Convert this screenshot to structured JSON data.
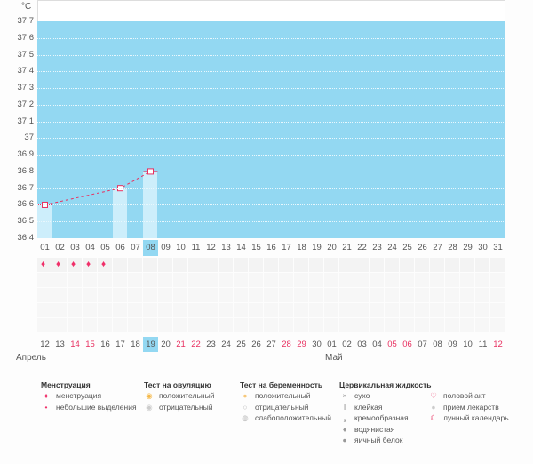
{
  "unit": "°C",
  "y_ticks": [
    "37.7",
    "37.6",
    "37.5",
    "37.4",
    "37.3",
    "37.2",
    "37.1",
    "37",
    "36.9",
    "36.8",
    "36.7",
    "36.6",
    "36.5",
    "36.4"
  ],
  "cycle_days": [
    "01",
    "02",
    "03",
    "04",
    "05",
    "06",
    "07",
    "08",
    "09",
    "10",
    "11",
    "12",
    "13",
    "14",
    "15",
    "16",
    "17",
    "18",
    "19",
    "20",
    "21",
    "22",
    "23",
    "24",
    "25",
    "26",
    "27",
    "28",
    "29",
    "30",
    "31"
  ],
  "current_cycle_day": "08",
  "temperatures": [
    {
      "day": "01",
      "value": 36.6
    },
    {
      "day": "06",
      "value": 36.7
    },
    {
      "day": "08",
      "value": 36.8
    }
  ],
  "menstruation_days": [
    "01",
    "02",
    "03",
    "04",
    "05"
  ],
  "dates": [
    "12",
    "13",
    "14",
    "15",
    "16",
    "17",
    "18",
    "19",
    "20",
    "21",
    "22",
    "23",
    "24",
    "25",
    "26",
    "27",
    "28",
    "29",
    "30",
    "01",
    "02",
    "03",
    "04",
    "05",
    "06",
    "07",
    "08",
    "09",
    "10",
    "11",
    "12"
  ],
  "weekend_indexes": [
    2,
    3,
    9,
    10,
    16,
    17,
    23,
    24,
    30
  ],
  "today_index": 7,
  "months": [
    "Апрель",
    "Май"
  ],
  "colors": {
    "plot": "#93d8f2",
    "accent": "#e83060"
  },
  "legend": [
    {
      "title": "Менструация",
      "items": [
        {
          "icon": "drop-large-icon",
          "label": "менструация"
        },
        {
          "icon": "drop-small-icon",
          "label": "небольшие выделения"
        }
      ]
    },
    {
      "title": "Тест на овуляцию",
      "items": [
        {
          "icon": "ovulation-positive-icon",
          "label": "положительный"
        },
        {
          "icon": "ovulation-negative-icon",
          "label": "отрицательный"
        }
      ]
    },
    {
      "title": "Тест на беременность",
      "items": [
        {
          "icon": "pregnancy-positive-icon",
          "label": "положительный"
        },
        {
          "icon": "pregnancy-negative-icon",
          "label": "отрицательный"
        },
        {
          "icon": "pregnancy-weak-icon",
          "label": "слабоположительный"
        }
      ]
    },
    {
      "title": "Цервикальная жидкость",
      "items": [
        {
          "icon": "dry-icon",
          "label": "сухо"
        },
        {
          "icon": "sticky-icon",
          "label": "клейкая"
        },
        {
          "icon": "creamy-icon",
          "label": "кремообразная"
        },
        {
          "icon": "watery-icon",
          "label": "водянистая"
        },
        {
          "icon": "egg-white-icon",
          "label": "яичный белок"
        }
      ]
    },
    {
      "title": "",
      "items": [
        {
          "icon": "heart-icon",
          "label": "половой акт"
        },
        {
          "icon": "pill-icon",
          "label": "прием лекарств"
        },
        {
          "icon": "moon-icon",
          "label": "лунный календарь"
        }
      ]
    }
  ]
}
